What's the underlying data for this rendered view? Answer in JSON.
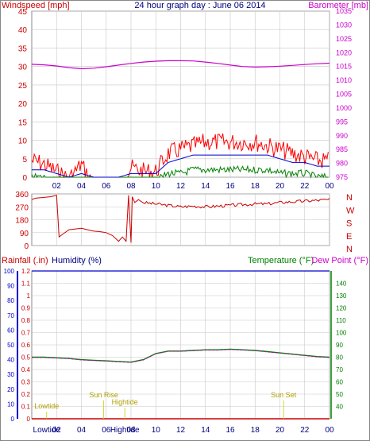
{
  "title": "24 hour graph day : June 06 2014",
  "colors": {
    "wind": "#e00000",
    "gust": "#ff0000",
    "wind_avg": "#0000cc",
    "wind_green": "#008000",
    "baro": "#cc00cc",
    "dir": "#cc0000",
    "rain": "#cc0000",
    "humidity": "#0000cc",
    "temp": "#008000",
    "dew": "#cc00cc",
    "astro": "#cccc00",
    "grid": "#c8c8c8"
  },
  "chart_data": [
    {
      "type": "line",
      "name": "wind-baro",
      "left_label": "Windspeed [mph]",
      "right_label": "Barometer [mb]",
      "x_ticks": [
        "02",
        "04",
        "06",
        "08",
        "10",
        "12",
        "14",
        "16",
        "18",
        "20",
        "22",
        "00"
      ],
      "ylim_left": [
        0,
        45
      ],
      "yticks_left": [
        "0",
        "5",
        "10",
        "15",
        "20",
        "25",
        "30",
        "35",
        "40",
        "45"
      ],
      "ylim_right": [
        975,
        1035
      ],
      "yticks_right": [
        "975",
        "980",
        "985",
        "990",
        "995",
        "1000",
        "1005",
        "1010",
        "1015",
        "1020",
        "1025",
        "1030",
        "1035"
      ],
      "barometer": {
        "x": [
          0,
          1,
          2,
          3,
          4,
          5,
          6,
          7,
          8,
          9,
          10,
          11,
          12,
          13,
          14,
          15,
          16,
          17,
          18,
          19,
          20,
          21,
          22,
          23,
          24
        ],
        "y": [
          1015.8,
          1015.6,
          1015.2,
          1014.6,
          1014.2,
          1014.4,
          1014.9,
          1015.5,
          1016.1,
          1016.6,
          1016.9,
          1017.1,
          1017.1,
          1017.0,
          1016.6,
          1016.1,
          1015.5,
          1015.0,
          1014.8,
          1014.9,
          1015.1,
          1015.4,
          1015.7,
          1016.0,
          1016.2
        ]
      },
      "wind_envelope": {
        "hours": [
          0,
          1,
          2,
          3,
          4,
          5,
          6,
          7,
          8,
          9,
          10,
          11,
          12,
          13,
          14,
          15,
          16,
          17,
          18,
          19,
          20,
          21,
          22,
          23,
          24
        ],
        "gust_max": [
          7,
          6,
          4,
          2,
          6,
          0,
          0,
          0,
          5,
          4,
          4,
          9,
          10,
          11,
          12,
          12,
          12,
          12,
          12,
          11,
          10,
          9,
          8,
          7,
          7
        ],
        "mean": [
          2,
          2,
          1,
          0,
          1,
          0,
          0,
          0,
          1,
          1,
          1,
          4,
          5,
          6,
          6,
          6,
          6,
          6,
          6,
          6,
          5,
          4,
          4,
          3,
          3
        ],
        "low": [
          1,
          1,
          0,
          0,
          0,
          0,
          0,
          0,
          0,
          0,
          0,
          2,
          2,
          3,
          3,
          3,
          3,
          3,
          3,
          3,
          2,
          2,
          2,
          1,
          1
        ]
      }
    },
    {
      "type": "line",
      "name": "wind-direction",
      "ylim": [
        0,
        360
      ],
      "yticks": [
        "0",
        "90",
        "180",
        "270",
        "360"
      ],
      "compass": [
        "N",
        "W",
        "S",
        "E",
        "N"
      ],
      "direction": {
        "x": [
          0,
          0.3,
          1.5,
          2.0,
          2.2,
          2.5,
          3.0,
          4.0,
          4.5,
          5.0,
          5.6,
          6.0,
          6.5,
          7.0,
          7.3,
          7.6,
          7.8,
          8.0,
          8.1,
          8.3,
          8.6,
          9.0,
          10,
          11,
          12,
          13,
          14,
          15,
          16,
          17,
          18,
          19,
          20,
          21,
          22,
          23,
          24
        ],
        "y": [
          320,
          330,
          340,
          350,
          60,
          80,
          110,
          120,
          110,
          100,
          95,
          90,
          70,
          30,
          60,
          30,
          350,
          20,
          340,
          300,
          320,
          300,
          290,
          280,
          270,
          275,
          270,
          275,
          280,
          285,
          290,
          290,
          300,
          305,
          310,
          315,
          320
        ]
      }
    },
    {
      "type": "line",
      "name": "rain-humidity-temp",
      "labels": {
        "rain": "Rainfall (.in)",
        "humidity": "Humidity (%)",
        "temp": "Temperature (°F)",
        "dew": "Dew Point (°F)"
      },
      "ylim_left_outer": [
        0,
        1.2
      ],
      "yticks_left_outer": [
        "0",
        "0.1",
        "0.2",
        "0.3",
        "0.4",
        "0.5",
        "0.6",
        "0.7",
        "0.8",
        "0.9",
        "1",
        "1.1",
        "1.2"
      ],
      "ylim_left_inner": [
        0,
        100
      ],
      "yticks_left_inner": [
        "0",
        "10",
        "20",
        "30",
        "40",
        "50",
        "60",
        "70",
        "80",
        "90",
        "100"
      ],
      "ylim_right": [
        30,
        150
      ],
      "yticks_right": [
        "40",
        "50",
        "60",
        "70",
        "80",
        "90",
        "100",
        "110",
        "120",
        "130",
        "140"
      ],
      "humidity": {
        "value": 100
      },
      "rainfall": {
        "value": 0
      },
      "temperature": {
        "x": [
          0,
          1,
          2,
          3,
          4,
          5,
          6,
          7,
          8,
          9,
          10,
          11,
          12,
          13,
          14,
          15,
          16,
          17,
          18,
          19,
          20,
          21,
          22,
          23,
          24
        ],
        "y": [
          80,
          80,
          79.5,
          79,
          78,
          77.5,
          77,
          76.5,
          76,
          78,
          83,
          85,
          85,
          85.5,
          86,
          86,
          86.5,
          86,
          85.5,
          84.5,
          83.5,
          82.5,
          81.5,
          80.5,
          80
        ]
      },
      "dewpoint": {
        "x": [
          0,
          1,
          2,
          3,
          4,
          5,
          6,
          7,
          8,
          9,
          10,
          11,
          12,
          13,
          14,
          15,
          16,
          17,
          18,
          19,
          20,
          21,
          22,
          23,
          24
        ],
        "y": [
          80,
          80,
          79.5,
          79,
          78,
          77.5,
          77,
          76.5,
          76,
          78,
          83,
          85,
          85,
          85.5,
          86,
          86,
          86.5,
          86,
          85.5,
          84.5,
          83.5,
          82.5,
          81.5,
          80.5,
          80
        ]
      },
      "annotations": [
        {
          "label": "Lowtide",
          "hour": 1.2
        },
        {
          "label": "Sun Rise",
          "hour": 5.8
        },
        {
          "label": "Hightide",
          "hour": 7.5
        },
        {
          "label": "Sun Set",
          "hour": 20.3
        }
      ],
      "bottom_labels": [
        {
          "label": "Lowtide",
          "hour": 1.2
        },
        {
          "label": "Hightide",
          "hour": 7.5
        }
      ]
    }
  ]
}
